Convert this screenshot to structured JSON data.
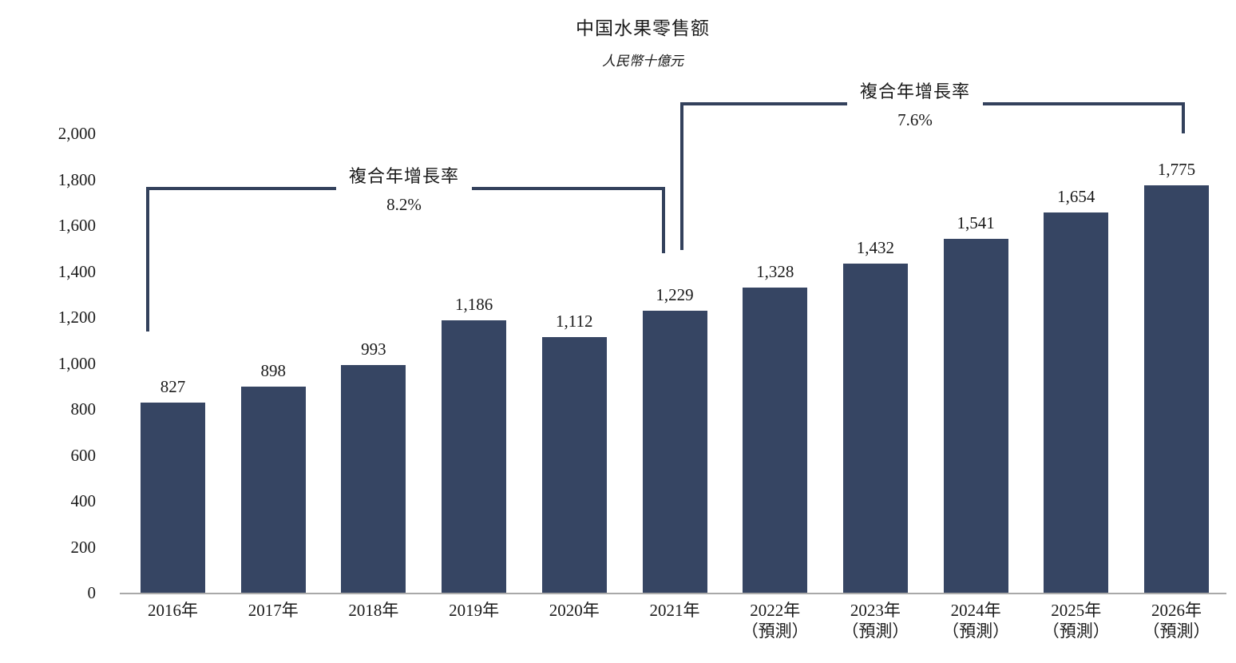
{
  "header": {
    "title": "中国水果零售额",
    "subtitle": "人民幣十億元"
  },
  "colors": {
    "bar": "#364563",
    "bracket": "#33415C",
    "axis_line": "#A9A9A9",
    "text": "#1A1A1A",
    "background": "#FFFFFF"
  },
  "chart_data": {
    "type": "bar",
    "title": "中国水果零售额",
    "unit_label": "人民幣十億元",
    "categories": [
      "2016年",
      "2017年",
      "2018年",
      "2019年",
      "2020年",
      "2021年",
      "2022年",
      "2023年",
      "2024年",
      "2025年",
      "2026年"
    ],
    "category_sublabels": [
      "",
      "",
      "",
      "",
      "",
      "",
      "（預測）",
      "（預測）",
      "（預測）",
      "（預測）",
      "（預測）"
    ],
    "values": [
      827,
      898,
      993,
      1186,
      1112,
      1229,
      1328,
      1432,
      1541,
      1654,
      1775
    ],
    "value_labels": [
      "827",
      "898",
      "993",
      "1,186",
      "1,112",
      "1,229",
      "1,328",
      "1,432",
      "1,541",
      "1,654",
      "1,775"
    ],
    "xlabel": "",
    "ylabel": "",
    "ylim": [
      0,
      2000
    ],
    "y_ticks": [
      0,
      200,
      400,
      600,
      800,
      1000,
      1200,
      1400,
      1600,
      1800,
      2000
    ],
    "y_tick_labels": [
      "0",
      "200",
      "400",
      "600",
      "800",
      "1,000",
      "1,200",
      "1,400",
      "1,600",
      "1,800",
      "2,000"
    ],
    "grid": false,
    "legend": null,
    "annotations": [
      {
        "label": "複合年增長率",
        "value": "8.2%",
        "from_category": "2016年",
        "to_category": "2021年"
      },
      {
        "label": "複合年增長率",
        "value": "7.6%",
        "from_category": "2021年",
        "to_category": "2026年"
      }
    ]
  }
}
